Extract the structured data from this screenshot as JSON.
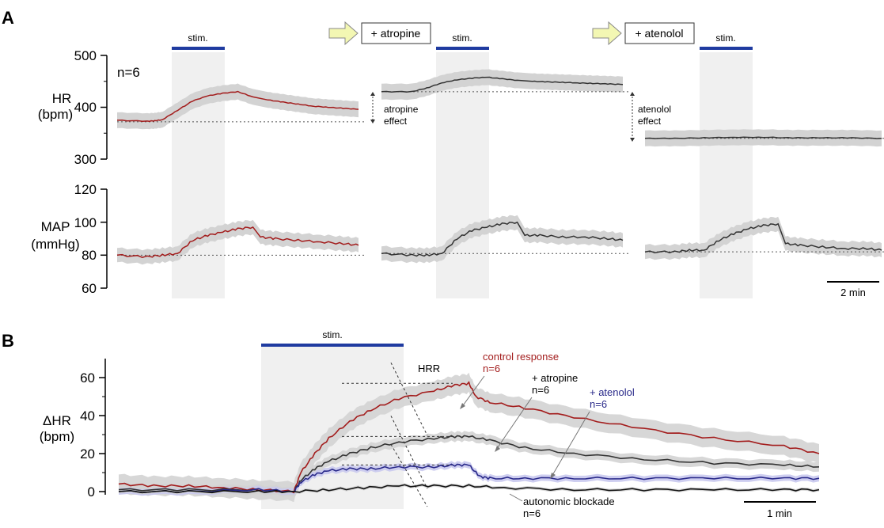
{
  "labels": {
    "panel_a": "A",
    "panel_b": "B",
    "stim": "stim.",
    "atropine_box": "+ atropine",
    "atenolol_box": "+ atenolol",
    "n6": "n=6",
    "hr_label_line1": "HR",
    "hr_label_line2": "(bpm)",
    "map_label_line1": "MAP",
    "map_label_line2": "(mmHg)",
    "atropine_effect_line1": "atropine",
    "atropine_effect_line2": "effect",
    "atenolol_effect_line1": "atenolol",
    "atenolol_effect_line2": "effect",
    "scale_a": "2 min",
    "dhr_label_line1": "ΔHR",
    "dhr_label_line2": "(bpm)",
    "hrr": "HRR",
    "control_line1": "control response",
    "control_line2": "n=6",
    "atropine_line1": "+ atropine",
    "atropine_line2": "n=6",
    "atenolol_line1": "+ atenolol",
    "atenolol_line2": "n=6",
    "blockade_line1": "autonomic blockade",
    "blockade_line2": "n=6",
    "scale_b": "1 min"
  },
  "colors": {
    "control": "#a31d1d",
    "atropine": "#333333",
    "atenolol": "#2a2a8a",
    "blockade": "#111111",
    "band": "#d3d3d3",
    "band_blue": "#c9c9ee",
    "stim_shade": "#f0f0f0",
    "stim_bar": "#1f3ba0",
    "arrow_fill": "#f3f7b3"
  },
  "chart_data": [
    {
      "id": "A-HR",
      "type": "line",
      "ylabel": "HR (bpm)",
      "ylim": [
        300,
        500
      ],
      "yticks": [
        300,
        400,
        500
      ],
      "segments": [
        {
          "condition": "control",
          "color": "control",
          "baseline": 372,
          "x": [
            0,
            2,
            2.5,
            3,
            4,
            5,
            6,
            7,
            8,
            9
          ],
          "y": [
            375,
            373,
            374,
            376,
            394,
            412,
            422,
            427,
            430,
            420
          ],
          "x2": [
            10,
            11,
            12,
            13,
            14,
            15,
            16
          ],
          "y2": [
            414,
            410,
            406,
            402,
            400,
            398,
            396
          ]
        },
        {
          "condition": "+ atropine",
          "color": "atropine",
          "baseline": 430,
          "x": [
            0,
            2,
            3,
            4,
            5,
            6,
            7,
            8,
            9
          ],
          "y": [
            430,
            430,
            437,
            447,
            453,
            456,
            458,
            455,
            452
          ],
          "x2": [
            10,
            11,
            12,
            13,
            14,
            15,
            16
          ],
          "y2": [
            450,
            449,
            448,
            447,
            446,
            445,
            444
          ]
        },
        {
          "condition": "+ atenolol",
          "color": "atropine",
          "baseline": 340,
          "x": [
            0,
            2,
            4,
            6,
            8,
            10,
            12,
            14,
            16
          ],
          "y": [
            340,
            340,
            341,
            342,
            342,
            341,
            341,
            341,
            340
          ]
        }
      ]
    },
    {
      "id": "A-MAP",
      "type": "line",
      "ylabel": "MAP (mmHg)",
      "ylim": [
        60,
        120
      ],
      "yticks": [
        60,
        80,
        100,
        120
      ],
      "segments": [
        {
          "condition": "control",
          "color": "control",
          "baseline": 80,
          "x": [
            0,
            2,
            3,
            4,
            5,
            6,
            7,
            8,
            9
          ],
          "y": [
            80,
            79,
            80,
            81,
            89,
            92,
            94,
            96,
            97
          ],
          "x2": [
            9.5,
            10.5,
            12,
            13.5,
            15,
            16
          ],
          "y2": [
            91,
            90,
            89,
            88,
            87,
            86
          ]
        },
        {
          "condition": "+ atropine",
          "color": "atropine",
          "baseline": 81,
          "x": [
            0,
            2,
            3,
            4,
            5,
            6,
            7,
            8,
            9
          ],
          "y": [
            81,
            80,
            80,
            81,
            90,
            95,
            97,
            99,
            100
          ],
          "x2": [
            9.5,
            10.5,
            12,
            13.5,
            15,
            16
          ],
          "y2": [
            92,
            92,
            91,
            91,
            90,
            89
          ]
        },
        {
          "condition": "+ atenolol",
          "color": "atropine",
          "baseline": 82,
          "x": [
            0,
            2,
            3,
            4,
            5,
            6,
            7,
            8,
            9
          ],
          "y": [
            82,
            82,
            83,
            83,
            89,
            93,
            96,
            98,
            99
          ],
          "x2": [
            9.5,
            10.5,
            12,
            13.5,
            15,
            16
          ],
          "y2": [
            87,
            86,
            85,
            84,
            84,
            83
          ]
        }
      ]
    },
    {
      "id": "B",
      "type": "line",
      "ylabel": "ΔHR (bpm)",
      "ylim": [
        -3,
        70
      ],
      "yticks": [
        0,
        20,
        40,
        60
      ],
      "stim_range": [
        2.5,
        5.0
      ],
      "series": [
        {
          "name": "control response",
          "color": "control",
          "peak": 57,
          "x": [
            0,
            0.5,
            1,
            1.5,
            2,
            2.5,
            2.6,
            2.8,
            3.0,
            3.3,
            3.6,
            4.0,
            4.5,
            4.8,
            5.0,
            5.1,
            5.3,
            5.8,
            6.5,
            7.5,
            8.5,
            9.5,
            10
          ],
          "y": [
            4,
            3,
            3,
            2,
            1,
            0,
            10,
            20,
            28,
            37,
            43,
            49,
            53,
            56,
            57,
            50,
            47,
            44,
            39,
            33,
            28,
            24,
            20
          ]
        },
        {
          "name": "+ atropine",
          "color": "atropine",
          "peak": 29,
          "x": [
            0,
            1,
            2,
            2.5,
            2.6,
            2.8,
            3.0,
            3.3,
            3.6,
            4.0,
            4.5,
            4.8,
            5.0,
            5.3,
            5.8,
            6.5,
            7.5,
            8.5,
            9.5,
            10
          ],
          "y": [
            1,
            1,
            1,
            0,
            6,
            12,
            16,
            20,
            23,
            26,
            28,
            29,
            29,
            27,
            23,
            20,
            17,
            15,
            14,
            13
          ]
        },
        {
          "name": "+ atenolol",
          "color": "atenolol",
          "peak": 14,
          "x": [
            0,
            1,
            2,
            2.5,
            2.6,
            2.8,
            3.0,
            3.3,
            3.6,
            4.0,
            4.5,
            4.8,
            5.0,
            5.15,
            5.3,
            5.8,
            6.5,
            7.5,
            8.5,
            9.5,
            10
          ],
          "y": [
            0,
            0,
            1,
            0,
            5,
            9,
            11,
            12,
            12,
            13,
            13,
            14,
            14,
            8,
            7,
            7,
            7,
            7,
            7,
            7,
            7
          ]
        },
        {
          "name": "autonomic blockade",
          "color": "blockade",
          "x": [
            0,
            1,
            2,
            2.5,
            3.0,
            3.5,
            4.0,
            4.5,
            5.0,
            5.5,
            6.5,
            7.5,
            8.5,
            9.5,
            10
          ],
          "y": [
            0,
            0,
            0,
            0,
            1,
            2,
            3,
            3,
            3,
            2,
            1,
            1,
            1,
            1,
            1
          ]
        }
      ]
    }
  ]
}
